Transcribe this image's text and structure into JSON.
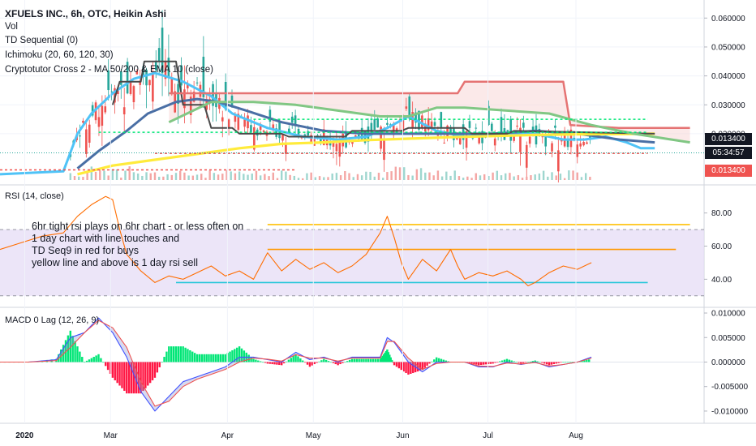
{
  "header": {
    "title": "XFUELS INC., 6h, OTC, Heikin Ashi",
    "indicators": [
      "Vol",
      "TD Sequential (0)",
      "Ichimoku (20, 60, 120, 30)",
      "Cryptotutor Cross 2 - MA 50/200 & EMA 10 (close)"
    ]
  },
  "annotation": {
    "lines": [
      "6hr tight rsi plays on 6hr chart - or less often on",
      "1 day chart with line touches and",
      "TD Seq9 in red for buys",
      "yellow line and above is 1 day rsi sell"
    ]
  },
  "panes": {
    "rsi_label": "RSI (14, close)",
    "macd_label": "MACD 0 Lag (12, 26, 9)"
  },
  "price_tags": {
    "last": "0.013400",
    "countdown": "05:34:57",
    "last_red": "0.013400"
  },
  "colors": {
    "up": "#26a69a",
    "down": "#ef5350",
    "rsi": "#ff6d00",
    "ema10": "#4fc3f7",
    "ma50": "#4a6fa5",
    "ma200": "#ffeb3b",
    "cloud_top": "#e57373",
    "cloud_bottom": "#81c784",
    "rsi_band": "#e6dcf5",
    "macd_line": "#3f51ff",
    "macd_signal": "#ef5350",
    "hist_up": "#00e676",
    "hist_down": "#ff1744"
  },
  "chart_data": [
    {
      "type": "line",
      "title": "XFUELS INC., 6h, OTC, Heikin Ashi",
      "x_ticks": [
        "2020",
        "Mar",
        "Apr",
        "May",
        "Jun",
        "Jul",
        "Aug"
      ],
      "y_ticks": [
        "0.060000",
        "0.050000",
        "0.040000",
        "0.030000",
        "0.020000"
      ],
      "ylim": [
        0.004,
        0.064
      ],
      "last_value": 0.0134,
      "series": [
        {
          "key": "ema10",
          "x": [
            0,
            0.09,
            0.11,
            0.13,
            0.16,
            0.19,
            0.22,
            0.26,
            0.3,
            0.33,
            0.38,
            0.43,
            0.48,
            0.52,
            0.55,
            0.58,
            0.62,
            0.66,
            0.71,
            0.76,
            0.8,
            0.83,
            0.86,
            0.89,
            0.91,
            0.93
          ],
          "values": [
            0.006,
            0.007,
            0.02,
            0.027,
            0.034,
            0.039,
            0.041,
            0.038,
            0.033,
            0.027,
            0.022,
            0.019,
            0.018,
            0.019,
            0.022,
            0.026,
            0.021,
            0.019,
            0.02,
            0.02,
            0.018,
            0.018,
            0.019,
            0.017,
            0.015,
            0.015
          ]
        },
        {
          "key": "ma50",
          "x": [
            0.11,
            0.14,
            0.18,
            0.21,
            0.25,
            0.28,
            0.31,
            0.35,
            0.4,
            0.46,
            0.52,
            0.58,
            0.64,
            0.7,
            0.76,
            0.82,
            0.88,
            0.93
          ],
          "values": [
            0.008,
            0.014,
            0.021,
            0.027,
            0.031,
            0.032,
            0.031,
            0.028,
            0.024,
            0.021,
            0.02,
            0.02,
            0.02,
            0.02,
            0.021,
            0.02,
            0.018,
            0.017
          ]
        },
        {
          "key": "ma200",
          "x": [
            0.11,
            0.16,
            0.22,
            0.28,
            0.34,
            0.4,
            0.46,
            0.52,
            0.58,
            0.64,
            0.7,
            0.76,
            0.82,
            0.88,
            0.93
          ],
          "values": [
            0.006,
            0.009,
            0.011,
            0.013,
            0.015,
            0.0165,
            0.017,
            0.0178,
            0.0183,
            0.0188,
            0.0192,
            0.0196,
            0.0198,
            0.0199,
            0.02
          ]
        },
        {
          "key": "kijun",
          "x": [
            0.16,
            0.17,
            0.2,
            0.205,
            0.22,
            0.25,
            0.26,
            0.29,
            0.3,
            0.33,
            0.34,
            0.4,
            0.41,
            0.49,
            0.5,
            0.57,
            0.58,
            0.66,
            0.67,
            0.72,
            0.73,
            0.93
          ],
          "values": [
            0.03,
            0.038,
            0.038,
            0.045,
            0.045,
            0.045,
            0.03,
            0.03,
            0.022,
            0.022,
            0.02,
            0.02,
            0.019,
            0.019,
            0.021,
            0.021,
            0.022,
            0.022,
            0.02,
            0.02,
            0.021,
            0.02
          ]
        },
        {
          "key": "cloud_top",
          "x": [
            0.24,
            0.38,
            0.6,
            0.65,
            0.66,
            0.8,
            0.81,
            0.88,
            0.9,
            0.98
          ],
          "values": [
            0.034,
            0.034,
            0.034,
            0.034,
            0.038,
            0.038,
            0.023,
            0.022,
            0.022,
            0.022
          ]
        },
        {
          "key": "cloud_bottom",
          "x": [
            0.24,
            0.3,
            0.36,
            0.42,
            0.48,
            0.54,
            0.58,
            0.62,
            0.66,
            0.72,
            0.78,
            0.84,
            0.9,
            0.98
          ],
          "values": [
            0.024,
            0.031,
            0.031,
            0.03,
            0.028,
            0.026,
            0.026,
            0.029,
            0.029,
            0.028,
            0.027,
            0.023,
            0.02,
            0.017
          ]
        }
      ]
    },
    {
      "type": "line",
      "title": "RSI (14, close)",
      "y_ticks": [
        "80.00",
        "60.00",
        "40.00"
      ],
      "ylim": [
        25,
        95
      ],
      "band": [
        30,
        70
      ],
      "levels": [
        {
          "name": "yellow",
          "value": 73
        },
        {
          "name": "orange",
          "value": 58
        },
        {
          "name": "cyan",
          "value": 38
        }
      ],
      "x": [
        0,
        0.03,
        0.06,
        0.09,
        0.11,
        0.13,
        0.15,
        0.16,
        0.17,
        0.18,
        0.2,
        0.22,
        0.24,
        0.26,
        0.28,
        0.3,
        0.32,
        0.34,
        0.36,
        0.38,
        0.4,
        0.42,
        0.44,
        0.46,
        0.48,
        0.5,
        0.52,
        0.54,
        0.55,
        0.56,
        0.57,
        0.58,
        0.6,
        0.62,
        0.64,
        0.65,
        0.66,
        0.68,
        0.7,
        0.72,
        0.74,
        0.75,
        0.76,
        0.78,
        0.8,
        0.82,
        0.84
      ],
      "values": [
        58,
        62,
        66,
        68,
        78,
        85,
        90,
        88,
        70,
        55,
        45,
        38,
        42,
        40,
        44,
        48,
        42,
        45,
        40,
        56,
        45,
        52,
        46,
        50,
        44,
        48,
        55,
        68,
        78,
        65,
        50,
        40,
        52,
        45,
        58,
        48,
        40,
        44,
        42,
        45,
        40,
        36,
        38,
        44,
        48,
        46,
        50
      ]
    },
    {
      "type": "line",
      "title": "MACD 0 Lag (12, 26, 9)",
      "y_ticks": [
        "0.010000",
        "0.005000",
        "0.000000",
        "-0.005000",
        "-0.010000"
      ],
      "ylim": [
        -0.0115,
        0.0105
      ],
      "x": [
        0,
        0.04,
        0.08,
        0.1,
        0.12,
        0.14,
        0.16,
        0.18,
        0.2,
        0.22,
        0.24,
        0.26,
        0.28,
        0.3,
        0.32,
        0.34,
        0.36,
        0.38,
        0.4,
        0.42,
        0.44,
        0.46,
        0.48,
        0.5,
        0.52,
        0.54,
        0.55,
        0.56,
        0.58,
        0.6,
        0.62,
        0.64,
        0.66,
        0.68,
        0.7,
        0.72,
        0.74,
        0.76,
        0.78,
        0.8,
        0.82,
        0.84
      ],
      "series": [
        {
          "key": "macd",
          "values": [
            0,
            0,
            0.0005,
            0.005,
            0.006,
            0.009,
            0.006,
            0.001,
            -0.006,
            -0.01,
            -0.007,
            -0.004,
            -0.003,
            -0.002,
            -0.001,
            0.001,
            0.001,
            0.0005,
            0,
            0.002,
            0.0005,
            0.001,
            0,
            0.001,
            0.001,
            0.001,
            0.005,
            0.004,
            0,
            -0.002,
            0,
            0,
            0,
            -0.001,
            -0.001,
            0,
            -0.0005,
            0,
            -0.001,
            -0.0005,
            0,
            0.001
          ]
        },
        {
          "key": "signal",
          "values": [
            0,
            0,
            0.0003,
            0.003,
            0.006,
            0.0085,
            0.007,
            0.003,
            -0.004,
            -0.009,
            -0.008,
            -0.005,
            -0.0035,
            -0.0025,
            -0.0015,
            0,
            0.0008,
            0.0006,
            0.0002,
            0.0015,
            0.0008,
            0.0008,
            0.0002,
            0.0008,
            0.0008,
            0.0008,
            0.0042,
            0.0042,
            0.0008,
            -0.0015,
            -0.0003,
            0,
            0,
            -0.0008,
            -0.0009,
            -0.0002,
            -0.0004,
            -0.0001,
            -0.0008,
            -0.0005,
            0,
            0.0008
          ]
        }
      ]
    }
  ]
}
